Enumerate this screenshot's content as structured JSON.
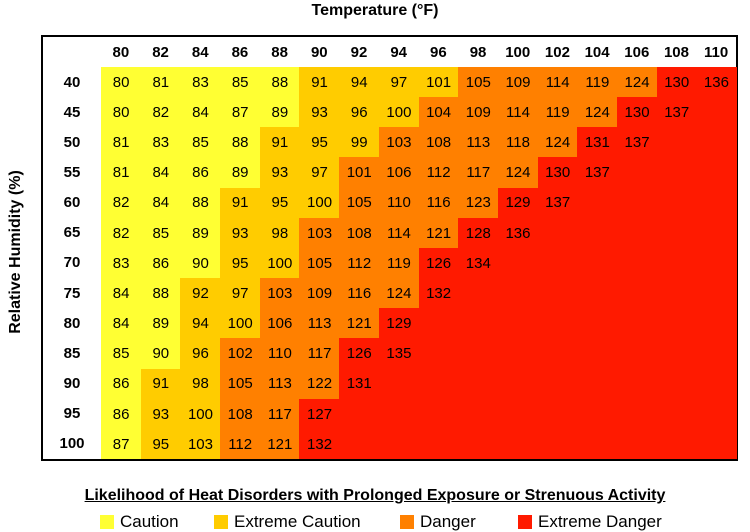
{
  "x_title": "Temperature (°F)",
  "y_title": "Relative Humidity (%)",
  "legend_title": "Likelihood of Heat Disorders with Prolonged Exposure or Strenuous Activity",
  "colors": {
    "caution": "#ffff33",
    "extreme_caution": "#ffcc00",
    "danger": "#ff8000",
    "extreme_danger": "#ff1a00",
    "none": "#ffffff"
  },
  "legend": [
    {
      "label": "Caution",
      "color": "#ffff33"
    },
    {
      "label": "Extreme Caution",
      "color": "#ffcc00"
    },
    {
      "label": "Danger",
      "color": "#ff8000"
    },
    {
      "label": "Extreme Danger",
      "color": "#ff1a00"
    }
  ],
  "chart_data": {
    "type": "heatmap",
    "title": "Temperature (°F)",
    "xlabel": "Temperature (°F)",
    "ylabel": "Relative Humidity (%)",
    "x": [
      "80",
      "82",
      "84",
      "86",
      "88",
      "90",
      "92",
      "94",
      "96",
      "98",
      "100",
      "102",
      "104",
      "106",
      "108",
      "110"
    ],
    "y": [
      "40",
      "45",
      "50",
      "55",
      "60",
      "65",
      "70",
      "75",
      "80",
      "85",
      "90",
      "95",
      "100"
    ],
    "values": [
      [
        "80",
        "81",
        "83",
        "85",
        "88",
        "91",
        "94",
        "97",
        "101",
        "105",
        "109",
        "114",
        "119",
        "124",
        "130",
        "136"
      ],
      [
        "80",
        "82",
        "84",
        "87",
        "89",
        "93",
        "96",
        "100",
        "104",
        "109",
        "114",
        "119",
        "124",
        "130",
        "137",
        ""
      ],
      [
        "81",
        "83",
        "85",
        "88",
        "91",
        "95",
        "99",
        "103",
        "108",
        "113",
        "118",
        "124",
        "131",
        "137",
        "",
        ""
      ],
      [
        "81",
        "84",
        "86",
        "89",
        "93",
        "97",
        "101",
        "106",
        "112",
        "117",
        "124",
        "130",
        "137",
        "",
        "",
        ""
      ],
      [
        "82",
        "84",
        "88",
        "91",
        "95",
        "100",
        "105",
        "110",
        "116",
        "123",
        "129",
        "137",
        "",
        "",
        "",
        ""
      ],
      [
        "82",
        "85",
        "89",
        "93",
        "98",
        "103",
        "108",
        "114",
        "121",
        "128",
        "136",
        "",
        "",
        "",
        "",
        ""
      ],
      [
        "83",
        "86",
        "90",
        "95",
        "100",
        "105",
        "112",
        "119",
        "126",
        "134",
        "",
        "",
        "",
        "",
        "",
        ""
      ],
      [
        "84",
        "88",
        "92",
        "97",
        "103",
        "109",
        "116",
        "124",
        "132",
        "",
        "",
        "",
        "",
        "",
        "",
        ""
      ],
      [
        "84",
        "89",
        "94",
        "100",
        "106",
        "113",
        "121",
        "129",
        "",
        "",
        "",
        "",
        "",
        "",
        "",
        ""
      ],
      [
        "85",
        "90",
        "96",
        "102",
        "110",
        "117",
        "126",
        "135",
        "",
        "",
        "",
        "",
        "",
        "",
        "",
        ""
      ],
      [
        "86",
        "91",
        "98",
        "105",
        "113",
        "122",
        "131",
        "",
        "",
        "",
        "",
        "",
        "",
        "",
        "",
        ""
      ],
      [
        "86",
        "93",
        "100",
        "108",
        "117",
        "127",
        "",
        "",
        "",
        "",
        "",
        "",
        "",
        "",
        "",
        ""
      ],
      [
        "87",
        "95",
        "103",
        "112",
        "121",
        "132",
        "",
        "",
        "",
        "",
        "",
        "",
        "",
        "",
        "",
        ""
      ]
    ],
    "categories": [
      [
        "C",
        "C",
        "C",
        "C",
        "C",
        "EC",
        "EC",
        "EC",
        "EC",
        "D",
        "D",
        "D",
        "D",
        "D",
        "ED",
        "ED"
      ],
      [
        "C",
        "C",
        "C",
        "C",
        "C",
        "EC",
        "EC",
        "EC",
        "D",
        "D",
        "D",
        "D",
        "D",
        "ED",
        "ED",
        "ED"
      ],
      [
        "C",
        "C",
        "C",
        "C",
        "EC",
        "EC",
        "EC",
        "D",
        "D",
        "D",
        "D",
        "D",
        "ED",
        "ED",
        "ED",
        "ED"
      ],
      [
        "C",
        "C",
        "C",
        "C",
        "EC",
        "EC",
        "D",
        "D",
        "D",
        "D",
        "D",
        "ED",
        "ED",
        "ED",
        "ED",
        "ED"
      ],
      [
        "C",
        "C",
        "C",
        "EC",
        "EC",
        "EC",
        "D",
        "D",
        "D",
        "D",
        "ED",
        "ED",
        "ED",
        "ED",
        "ED",
        "ED"
      ],
      [
        "C",
        "C",
        "C",
        "EC",
        "EC",
        "D",
        "D",
        "D",
        "D",
        "ED",
        "ED",
        "ED",
        "ED",
        "ED",
        "ED",
        "ED"
      ],
      [
        "C",
        "C",
        "C",
        "EC",
        "EC",
        "D",
        "D",
        "D",
        "ED",
        "ED",
        "ED",
        "ED",
        "ED",
        "ED",
        "ED",
        "ED"
      ],
      [
        "C",
        "C",
        "EC",
        "EC",
        "D",
        "D",
        "D",
        "D",
        "ED",
        "ED",
        "ED",
        "ED",
        "ED",
        "ED",
        "ED",
        "ED"
      ],
      [
        "C",
        "C",
        "EC",
        "EC",
        "D",
        "D",
        "D",
        "ED",
        "ED",
        "ED",
        "ED",
        "ED",
        "ED",
        "ED",
        "ED",
        "ED"
      ],
      [
        "C",
        "C",
        "EC",
        "D",
        "D",
        "D",
        "ED",
        "ED",
        "ED",
        "ED",
        "ED",
        "ED",
        "ED",
        "ED",
        "ED",
        "ED"
      ],
      [
        "C",
        "EC",
        "EC",
        "D",
        "D",
        "D",
        "ED",
        "ED",
        "ED",
        "ED",
        "ED",
        "ED",
        "ED",
        "ED",
        "ED",
        "ED"
      ],
      [
        "C",
        "EC",
        "EC",
        "D",
        "D",
        "ED",
        "ED",
        "ED",
        "ED",
        "ED",
        "ED",
        "ED",
        "ED",
        "ED",
        "ED",
        "ED"
      ],
      [
        "C",
        "EC",
        "EC",
        "D",
        "D",
        "ED",
        "ED",
        "ED",
        "ED",
        "ED",
        "ED",
        "ED",
        "ED",
        "ED",
        "ED",
        "ED"
      ]
    ]
  }
}
